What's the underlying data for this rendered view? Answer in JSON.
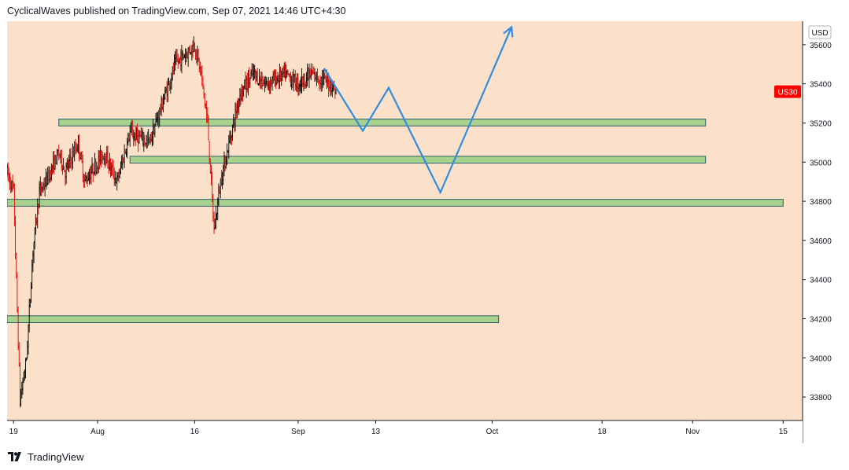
{
  "header": {
    "published_by": "CyclicalWaves published on TradingView.com, Sep 07, 2021 14:46 UTC+4:30"
  },
  "footer": {
    "brand": "TradingView",
    "logo_icon": "tradingview-logo-icon"
  },
  "colors": {
    "background": "#fbe1c9",
    "up_candle": "#000000",
    "down_candle": "#e00000",
    "zone_fill": "#a9d18e",
    "zone_border": "#2e5e6a",
    "projection": "#2f8ee0",
    "symbol_badge": "#ff0000",
    "axis_panel": "#ffffff"
  },
  "chart_data": {
    "type": "candlestick",
    "title": "",
    "symbol": "US30",
    "currency": "USD",
    "last_price": 35360,
    "y_axis": {
      "range": [
        33680,
        35720
      ],
      "ticks": [
        33800,
        34000,
        34200,
        34400,
        34600,
        34800,
        35000,
        35200,
        35400,
        35600
      ],
      "tick_labels": [
        "33800",
        "34000",
        "34200",
        "34400",
        "34600",
        "34800",
        "35000",
        "35200",
        "35400",
        "35600"
      ]
    },
    "x_axis": {
      "range_days": [
        "2021-07-18",
        "2021-11-18"
      ],
      "ticks": [
        {
          "date": "2021-07-19",
          "label": "19"
        },
        {
          "date": "2021-08-01",
          "label": "Aug"
        },
        {
          "date": "2021-08-16",
          "label": "16"
        },
        {
          "date": "2021-09-01",
          "label": "Sep"
        },
        {
          "date": "2021-09-13",
          "label": "13"
        },
        {
          "date": "2021-10-01",
          "label": "Oct"
        },
        {
          "date": "2021-10-18",
          "label": "18"
        },
        {
          "date": "2021-11-01",
          "label": "Nov"
        },
        {
          "date": "2021-11-15",
          "label": "15"
        }
      ]
    },
    "price_path": [
      [
        "2021-07-18",
        34950
      ],
      [
        "2021-07-19",
        34850
      ],
      [
        "2021-07-20",
        33780
      ],
      [
        "2021-07-21",
        34000
      ],
      [
        "2021-07-22",
        34550
      ],
      [
        "2021-07-23",
        34850
      ],
      [
        "2021-07-24",
        34900
      ],
      [
        "2021-07-26",
        35050
      ],
      [
        "2021-07-27",
        34950
      ],
      [
        "2021-07-29",
        35100
      ],
      [
        "2021-07-30",
        34900
      ],
      [
        "2021-08-02",
        35050
      ],
      [
        "2021-08-04",
        34900
      ],
      [
        "2021-08-06",
        35150
      ],
      [
        "2021-08-09",
        35100
      ],
      [
        "2021-08-11",
        35300
      ],
      [
        "2021-08-13",
        35500
      ],
      [
        "2021-08-16",
        35600
      ],
      [
        "2021-08-17",
        35450
      ],
      [
        "2021-08-18",
        35200
      ],
      [
        "2021-08-19",
        34650
      ],
      [
        "2021-08-20",
        34900
      ],
      [
        "2021-08-23",
        35350
      ],
      [
        "2021-08-25",
        35450
      ],
      [
        "2021-08-27",
        35400
      ],
      [
        "2021-08-30",
        35450
      ],
      [
        "2021-09-01",
        35400
      ],
      [
        "2021-09-03",
        35450
      ],
      [
        "2021-09-06",
        35400
      ],
      [
        "2021-09-07",
        35360
      ]
    ],
    "zones": [
      {
        "from": "2021-07-26",
        "to": "2021-11-03",
        "low": 35185,
        "high": 35220
      },
      {
        "from": "2021-08-06",
        "to": "2021-11-03",
        "low": 34995,
        "high": 35030
      },
      {
        "from": "2021-07-18",
        "to": "2021-11-15",
        "low": 34775,
        "high": 34810
      },
      {
        "from": "2021-07-18",
        "to": "2021-10-02",
        "low": 34180,
        "high": 34215
      }
    ],
    "projection": [
      [
        "2021-09-05",
        35480
      ],
      [
        "2021-09-11",
        35160
      ],
      [
        "2021-09-15",
        35380
      ],
      [
        "2021-09-23",
        34845
      ],
      [
        "2021-10-04",
        35690
      ]
    ],
    "grid": false,
    "legend": "none"
  }
}
